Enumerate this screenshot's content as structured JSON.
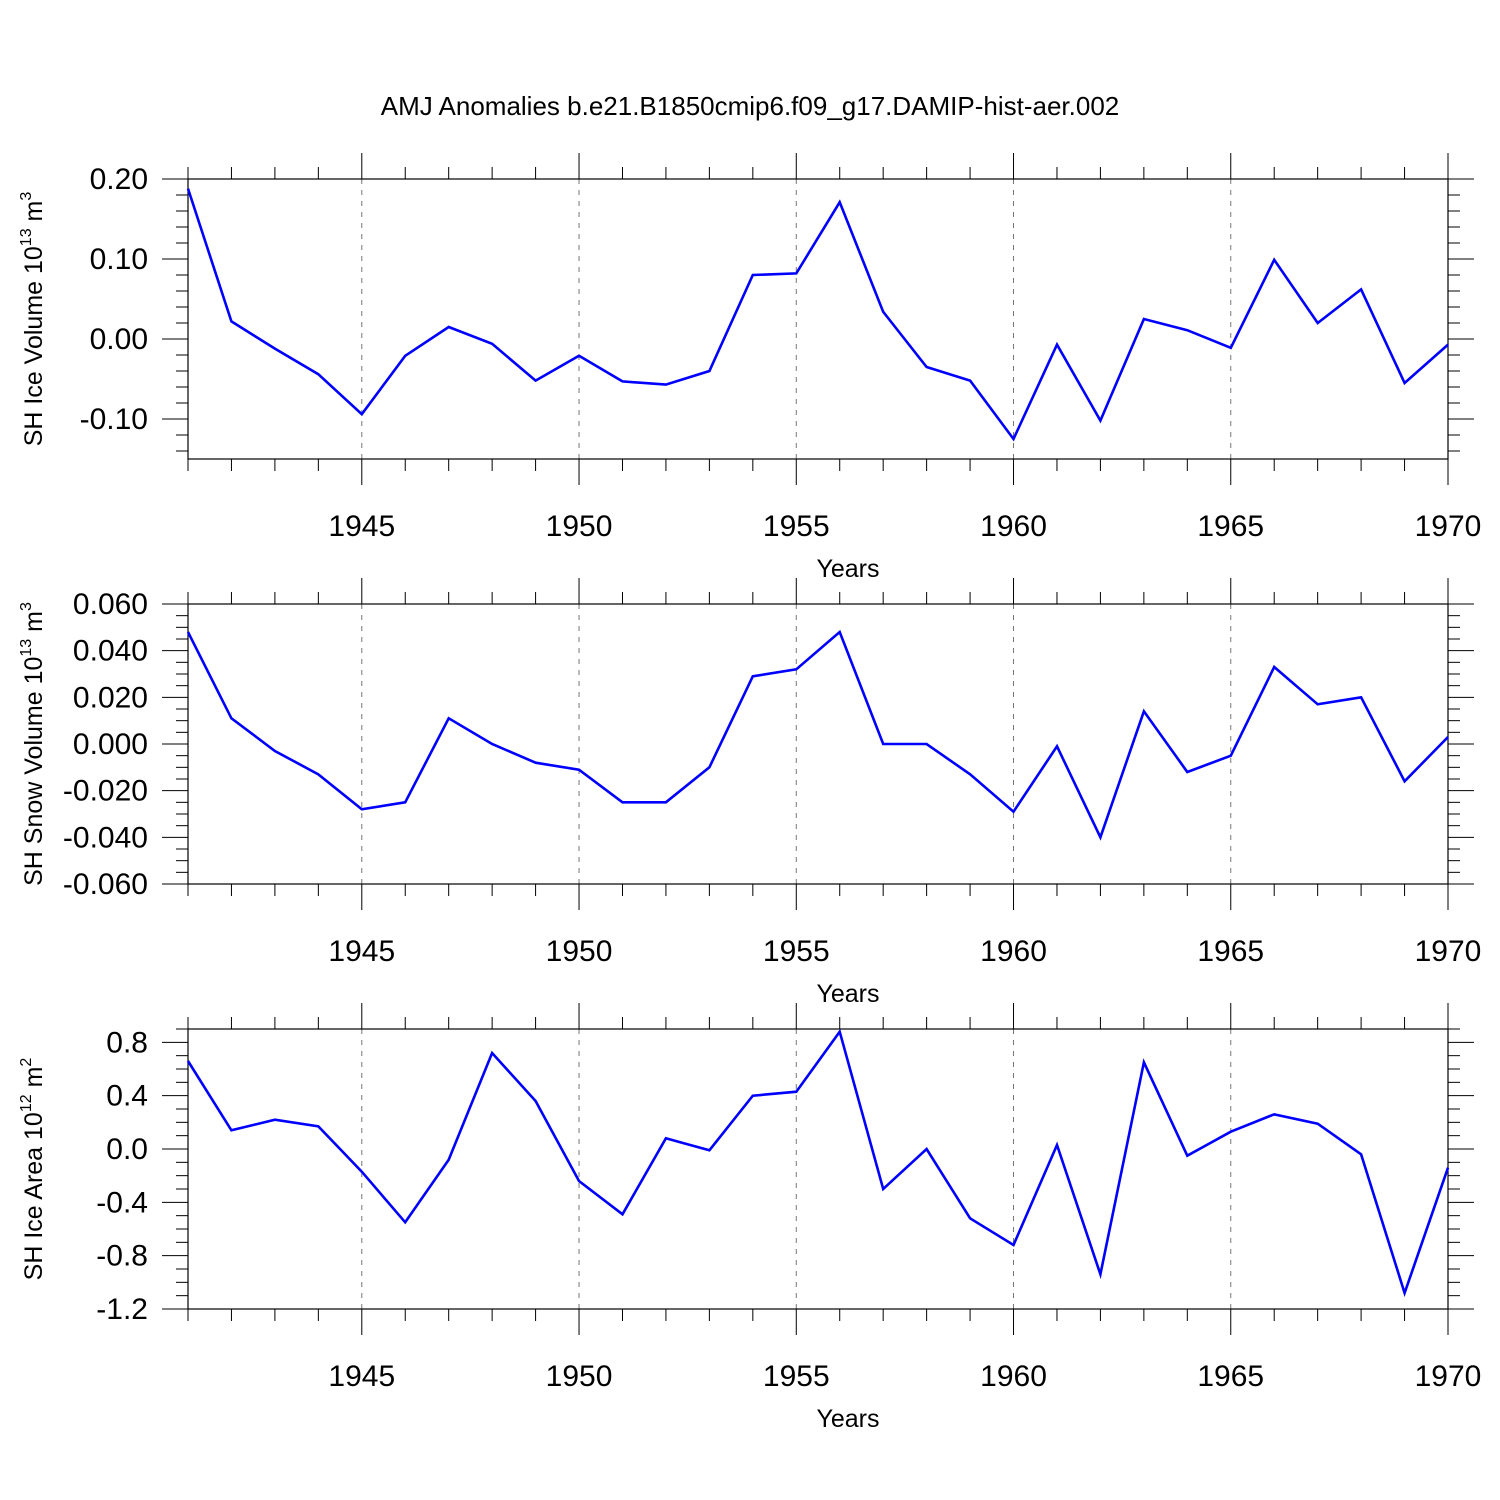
{
  "figure": {
    "title": "AMJ Anomalies b.e21.B1850cmip6.f09_g17.DAMIP-hist-aer.002"
  },
  "chart_data": [
    {
      "type": "line",
      "ylabel": {
        "main": "SH Ice Volume 10",
        "exponent": "13",
        "unit": " m",
        "unit_exponent": "3"
      },
      "xlabel": "Years",
      "xlim": [
        1941,
        1970
      ],
      "ylim": [
        -0.15,
        0.2
      ],
      "x_major_ticks": [
        1945,
        1950,
        1955,
        1960,
        1965,
        1970
      ],
      "y_ticks": [
        0.2,
        0.1,
        0.0,
        -0.1
      ],
      "y_tick_labels": [
        "0.20",
        "0.10",
        "0.00",
        "-0.10"
      ],
      "y_minor_step": 0.02,
      "grid": "vertical dashed at major x ticks",
      "line_color": "#0000ff",
      "x": [
        1941,
        1942,
        1943,
        1944,
        1945,
        1946,
        1947,
        1948,
        1949,
        1950,
        1951,
        1952,
        1953,
        1954,
        1955,
        1956,
        1957,
        1958,
        1959,
        1960,
        1961,
        1962,
        1963,
        1964,
        1965,
        1966,
        1967,
        1968,
        1969,
        1970
      ],
      "values": [
        0.188,
        0.022,
        -0.012,
        -0.044,
        -0.094,
        -0.021,
        0.015,
        -0.006,
        -0.052,
        -0.021,
        -0.053,
        -0.057,
        -0.04,
        0.08,
        0.082,
        0.171,
        0.034,
        -0.035,
        -0.052,
        -0.125,
        -0.007,
        -0.102,
        0.025,
        0.011,
        -0.011,
        0.099,
        0.02,
        0.062,
        -0.055,
        -0.007
      ]
    },
    {
      "type": "line",
      "ylabel": {
        "main": "SH Snow Volume 10",
        "exponent": "13",
        "unit": " m",
        "unit_exponent": "3"
      },
      "xlabel": "Years",
      "xlim": [
        1941,
        1970
      ],
      "ylim": [
        -0.06,
        0.06
      ],
      "x_major_ticks": [
        1945,
        1950,
        1955,
        1960,
        1965,
        1970
      ],
      "y_ticks": [
        0.06,
        0.04,
        0.02,
        0.0,
        -0.02,
        -0.04,
        -0.06
      ],
      "y_tick_labels": [
        "0.060",
        "0.040",
        "0.020",
        "0.000",
        "-0.020",
        "-0.040",
        "-0.060"
      ],
      "y_minor_step": 0.005,
      "grid": "vertical dashed at major x ticks",
      "line_color": "#0000ff",
      "x": [
        1941,
        1942,
        1943,
        1944,
        1945,
        1946,
        1947,
        1948,
        1949,
        1950,
        1951,
        1952,
        1953,
        1954,
        1955,
        1956,
        1957,
        1958,
        1959,
        1960,
        1961,
        1962,
        1963,
        1964,
        1965,
        1966,
        1967,
        1968,
        1969,
        1970
      ],
      "values": [
        0.048,
        0.011,
        -0.003,
        -0.013,
        -0.028,
        -0.025,
        0.011,
        0.0,
        -0.008,
        -0.011,
        -0.025,
        -0.025,
        -0.01,
        0.029,
        0.032,
        0.048,
        0.0,
        0.0,
        -0.013,
        -0.029,
        -0.001,
        -0.04,
        0.014,
        -0.012,
        -0.005,
        0.033,
        0.017,
        0.02,
        -0.016,
        0.003
      ]
    },
    {
      "type": "line",
      "ylabel": {
        "main": "SH Ice Area 10",
        "exponent": "12",
        "unit": " m",
        "unit_exponent": "2"
      },
      "xlabel": "Years",
      "xlim": [
        1941,
        1970
      ],
      "ylim": [
        -1.2,
        0.9
      ],
      "x_major_ticks": [
        1945,
        1950,
        1955,
        1960,
        1965,
        1970
      ],
      "y_ticks": [
        0.8,
        0.4,
        0.0,
        -0.4,
        -0.8,
        -1.2
      ],
      "y_tick_labels": [
        "0.8",
        "0.4",
        "0.0",
        "-0.4",
        "-0.8",
        "-1.2"
      ],
      "y_minor_step": 0.1,
      "grid": "vertical dashed at major x ticks",
      "line_color": "#0000ff",
      "x": [
        1941,
        1942,
        1943,
        1944,
        1945,
        1946,
        1947,
        1948,
        1949,
        1950,
        1951,
        1952,
        1953,
        1954,
        1955,
        1956,
        1957,
        1958,
        1959,
        1960,
        1961,
        1962,
        1963,
        1964,
        1965,
        1966,
        1967,
        1968,
        1969,
        1970
      ],
      "values": [
        0.66,
        0.14,
        0.22,
        0.17,
        -0.17,
        -0.55,
        -0.08,
        0.72,
        0.36,
        -0.24,
        -0.49,
        0.08,
        -0.01,
        0.4,
        0.43,
        0.88,
        -0.3,
        0.0,
        -0.52,
        -0.72,
        0.03,
        -0.94,
        0.65,
        -0.05,
        0.13,
        0.26,
        0.19,
        -0.04,
        -1.08,
        -0.14
      ]
    }
  ]
}
